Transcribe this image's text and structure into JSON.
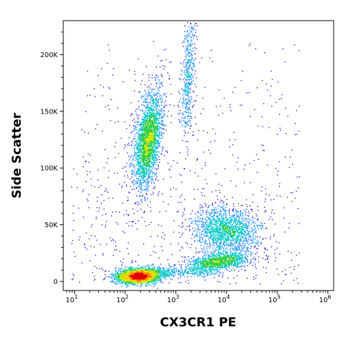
{
  "chart_data": {
    "type": "scatter",
    "subtype": "flow-cytometry-density-dot-plot",
    "title": "",
    "xlabel": "CX3CR1 PE",
    "ylabel": "Side Scatter",
    "x_scale": "log",
    "y_scale": "linear",
    "xlim": [
      6,
      1300000
    ],
    "ylim": [
      -8000,
      230000
    ],
    "x_ticks": [
      {
        "value": 10,
        "base": "10",
        "exp": "1"
      },
      {
        "value": 100,
        "base": "10",
        "exp": "2"
      },
      {
        "value": 1000,
        "base": "10",
        "exp": "3"
      },
      {
        "value": 10000,
        "base": "10",
        "exp": "4"
      },
      {
        "value": 100000,
        "base": "10",
        "exp": "5"
      },
      {
        "value": 1000000,
        "base": "10",
        "exp": "6"
      }
    ],
    "y_ticks": [
      {
        "value": 0,
        "label": "0"
      },
      {
        "value": 50000,
        "label": "50K"
      },
      {
        "value": 100000,
        "label": "100K"
      },
      {
        "value": 150000,
        "label": "150K"
      },
      {
        "value": 200000,
        "label": "200K"
      }
    ],
    "density_colormap": [
      "#1a1ad6",
      "#1e90ff",
      "#00c8c8",
      "#2ecc40",
      "#c8e600",
      "#ffcc00",
      "#ff7a00",
      "#e00000"
    ],
    "populations": [
      {
        "name": "",
        "x_center": 180,
        "y_center": 5000,
        "count": 2500,
        "density": "very high"
      },
      {
        "name": "",
        "x_center": 280,
        "y_center": 125000,
        "count": 2600,
        "density": "high"
      },
      {
        "name": "",
        "x_center": 1700,
        "y_center": 180000,
        "count": 500,
        "density": "low"
      },
      {
        "name": "",
        "x_center": 7000,
        "y_center": 18000,
        "count": 1100,
        "density": "medium"
      },
      {
        "name": "",
        "x_center": 10000,
        "y_center": 45000,
        "count": 1700,
        "density": "medium"
      }
    ]
  }
}
